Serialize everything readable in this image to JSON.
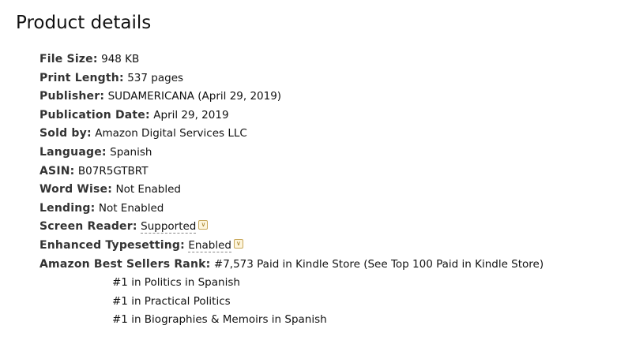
{
  "title": "Product details",
  "details": [
    {
      "label": "File Size:",
      "value": "948 KB"
    },
    {
      "label": "Print Length:",
      "value": "537 pages"
    },
    {
      "label": "Publisher:",
      "value": "SUDAMERICANA (April 29, 2019)"
    },
    {
      "label": "Publication Date:",
      "value": "April 29, 2019"
    },
    {
      "label": "Sold by:",
      "value": "Amazon Digital Services LLC"
    },
    {
      "label": "Language:",
      "value": "Spanish"
    },
    {
      "label": "ASIN:",
      "value": "B07R5GTBRT"
    },
    {
      "label": "Word Wise:",
      "value": "Not Enabled"
    },
    {
      "label": "Lending:",
      "value": "Not Enabled"
    },
    {
      "label": "Screen Reader:",
      "value": "Supported"
    },
    {
      "label": "Enhanced Typesetting:",
      "value": "Enabled"
    }
  ],
  "rank": {
    "label": "Amazon Best Sellers Rank:",
    "value": "#7,573 Paid in Kindle Store (",
    "link": "See Top 100 Paid in Kindle Store",
    "close": ")",
    "categories": [
      {
        "prefix": "#1 in ",
        "link": "Politics in Spanish"
      },
      {
        "prefix": "#1 in ",
        "link": "Practical Politics"
      },
      {
        "prefix": "#1 in ",
        "link": "Biographies & Memoirs in Spanish"
      }
    ]
  },
  "icons": {
    "toggle": "chevron-down-icon"
  },
  "colors": {
    "link": "#0066c0",
    "label": "#333333"
  }
}
